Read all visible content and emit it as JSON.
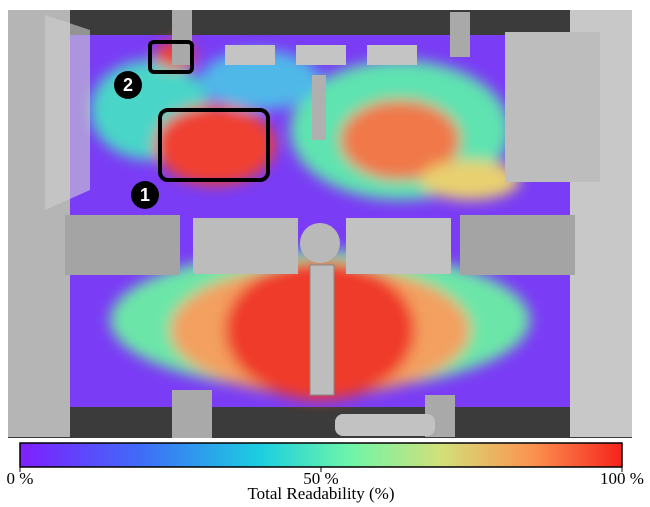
{
  "colorbar": {
    "label": "Total Readability (%)",
    "range": [
      0,
      100
    ],
    "ticks": [
      {
        "value": 0,
        "label": "0 %"
      },
      {
        "value": 50,
        "label": "50 %"
      },
      {
        "value": 100,
        "label": "100 %"
      }
    ]
  },
  "annotations": [
    {
      "label": "1"
    },
    {
      "label": "2"
    }
  ]
}
